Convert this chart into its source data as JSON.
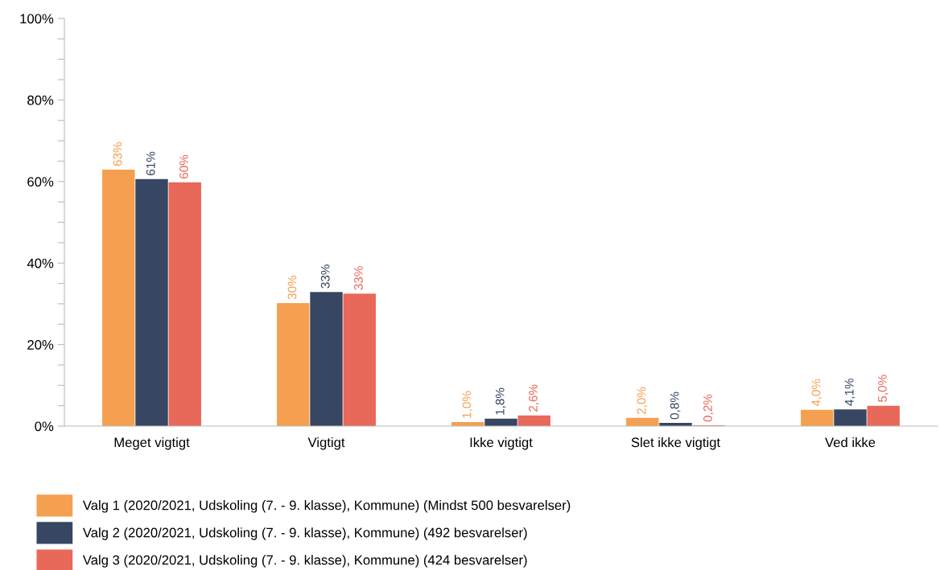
{
  "chart_data": {
    "type": "bar",
    "categories": [
      "Meget vigtigt",
      "Vigtigt",
      "Ikke vigtigt",
      "Slet ikke vigtigt",
      "Ved ikke"
    ],
    "series": [
      {
        "name": "Valg 1 (2020/2021, Udskoling (7. - 9. klasse), Kommune) (Mindst 500 besvarelser)",
        "color": "#f5a050",
        "values": [
          62.9,
          30.2,
          1.0,
          2.0,
          4.0
        ],
        "value_labels": [
          "63%",
          "30%",
          "1,0%",
          "2,0%",
          "4,0%"
        ]
      },
      {
        "name": "Valg 2 (2020/2021, Udskoling (7. - 9. klasse), Kommune) (492 besvarelser)",
        "color": "#374662",
        "values": [
          60.6,
          32.9,
          1.8,
          0.8,
          4.1
        ],
        "value_labels": [
          "61%",
          "33%",
          "1,8%",
          "0,8%",
          "4,1%"
        ]
      },
      {
        "name": "Valg 3 (2020/2021, Udskoling (7. - 9. klasse), Kommune) (424 besvarelser)",
        "color": "#e8685a",
        "values": [
          59.8,
          32.5,
          2.6,
          0.2,
          5.0
        ],
        "value_labels": [
          "60%",
          "33%",
          "2,6%",
          "0,2%",
          "5,0%"
        ]
      }
    ],
    "ylim": [
      0,
      100
    ],
    "yticks": [
      {
        "value": 0,
        "label": "0%"
      },
      {
        "value": 5,
        "label": null
      },
      {
        "value": 10,
        "label": null
      },
      {
        "value": 15,
        "label": null
      },
      {
        "value": 20,
        "label": "20%"
      },
      {
        "value": 25,
        "label": null
      },
      {
        "value": 30,
        "label": null
      },
      {
        "value": 35,
        "label": null
      },
      {
        "value": 40,
        "label": "40%"
      },
      {
        "value": 45,
        "label": null
      },
      {
        "value": 50,
        "label": null
      },
      {
        "value": 55,
        "label": null
      },
      {
        "value": 60,
        "label": "60%"
      },
      {
        "value": 65,
        "label": null
      },
      {
        "value": 70,
        "label": null
      },
      {
        "value": 75,
        "label": null
      },
      {
        "value": 80,
        "label": "80%"
      },
      {
        "value": 85,
        "label": null
      },
      {
        "value": 90,
        "label": null
      },
      {
        "value": 95,
        "label": null
      },
      {
        "value": 100,
        "label": "100%"
      }
    ],
    "grid": false,
    "legend": "bottom left"
  }
}
